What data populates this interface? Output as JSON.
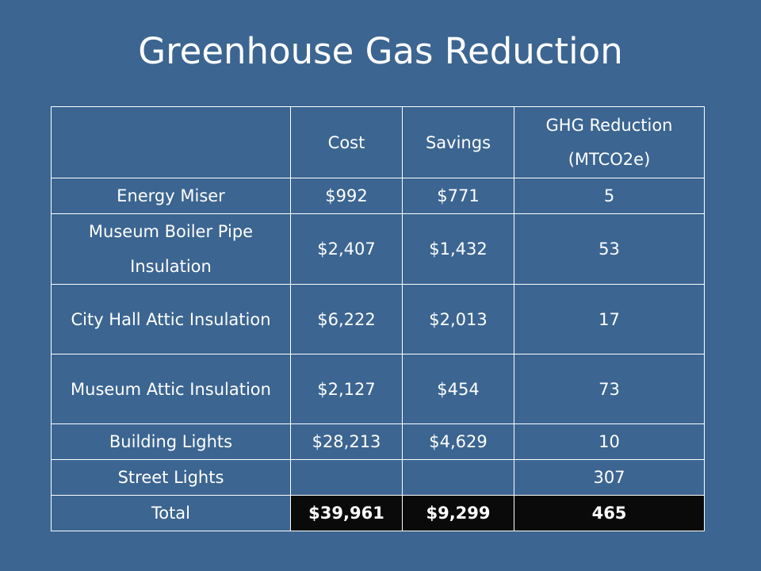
{
  "title": "Greenhouse Gas Reduction",
  "table": {
    "headers": [
      "",
      "Cost",
      "Savings",
      "GHG Reduction (MTCO2e)"
    ],
    "rows": [
      {
        "label": "Energy Miser",
        "cost": "$992",
        "savings": "$771",
        "ghg": "5"
      },
      {
        "label": "Museum Boiler Pipe Insulation",
        "cost": "$2,407",
        "savings": "$1,432",
        "ghg": "53"
      },
      {
        "label": "City Hall Attic Insulation",
        "cost": "$6,222",
        "savings": "$2,013",
        "ghg": "17"
      },
      {
        "label": "Museum Attic Insulation",
        "cost": "$2,127",
        "savings": "$454",
        "ghg": "73"
      },
      {
        "label": "Building Lights",
        "cost": "$28,213",
        "savings": "$4,629",
        "ghg": "10"
      },
      {
        "label": "Street Lights",
        "cost": "",
        "savings": "",
        "ghg": "307"
      }
    ],
    "total": {
      "label": "Total",
      "cost": "$39,961",
      "savings": "$9,299",
      "ghg": "465"
    }
  },
  "colors": {
    "background": "#3c6591",
    "text": "#ffffff",
    "border": "#ffffff",
    "total_highlight": "#0a0a0a"
  }
}
